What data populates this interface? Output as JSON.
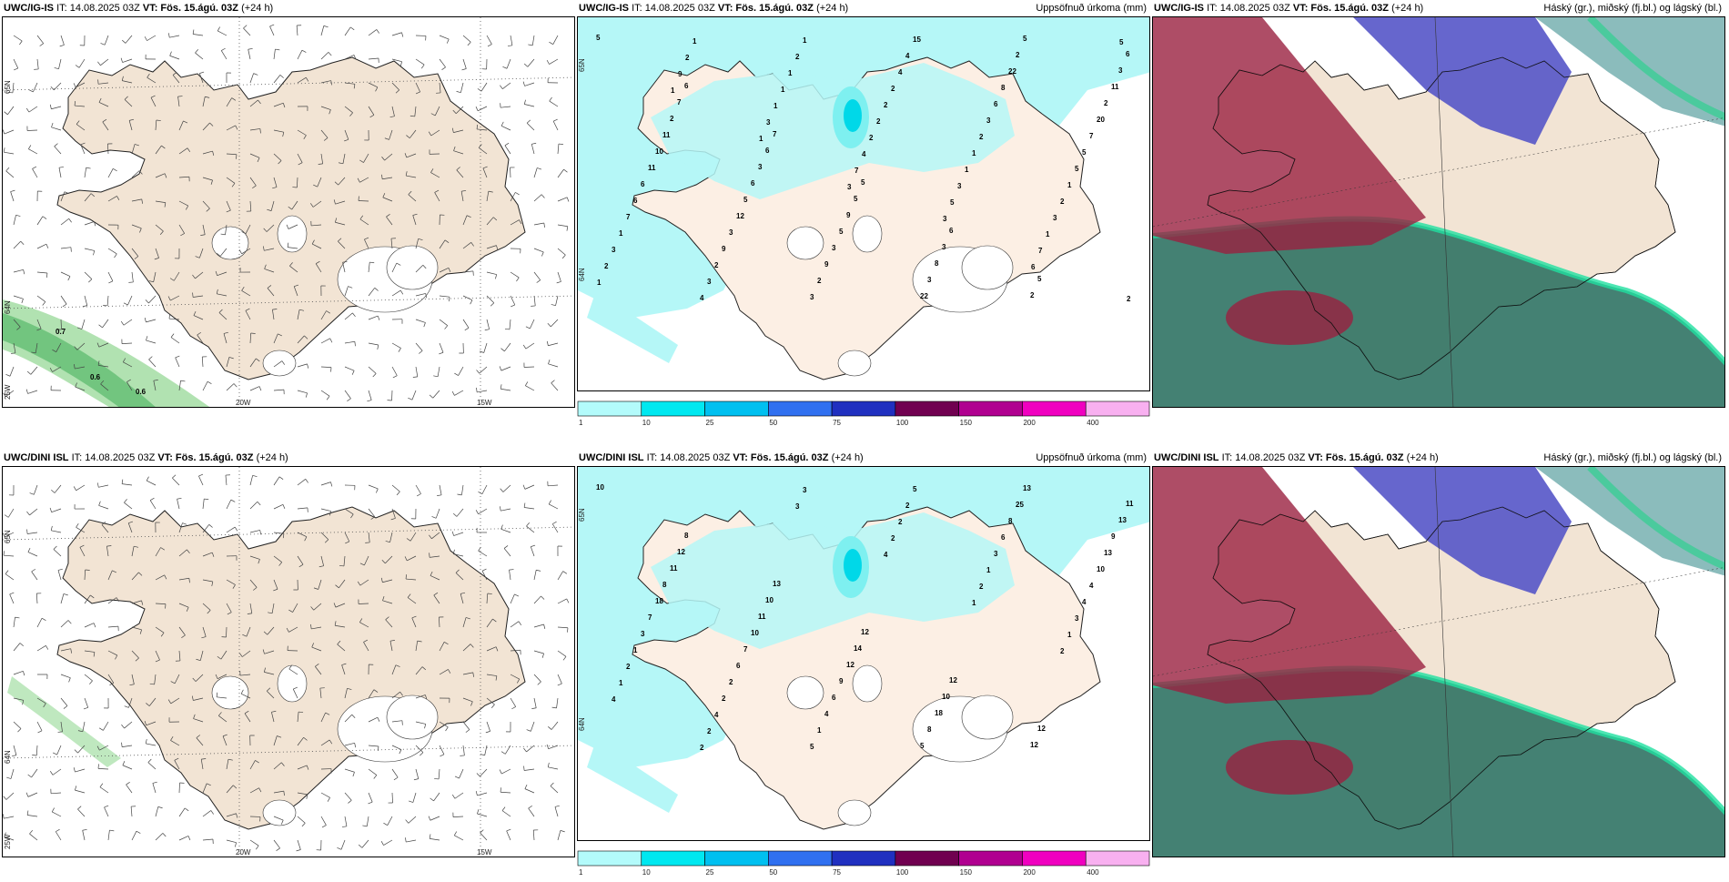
{
  "rows": [
    {
      "wind": {
        "model": "UWC/IG-IS",
        "it": "IT: 14.08.2025 03Z",
        "vt": "VT: Fös. 15.ágú. 03Z",
        "lead": "(+24 h)",
        "labels": [
          "0.7",
          "0.6",
          "0.6"
        ],
        "lon_ticks": [
          "20W",
          "15W"
        ],
        "lat_ticks": [
          "65N",
          "64N",
          "25W"
        ]
      },
      "precip": {
        "model": "UWC/IG-IS",
        "it": "IT: 14.08.2025 03Z",
        "vt": "VT: Fös. 15.ágú. 03Z",
        "lead": "(+24 h)",
        "title": "Uppsöfnuð úrkoma (mm)",
        "lat_ticks": [
          "65N",
          "64N"
        ],
        "values": [
          "5",
          "6",
          "7",
          "5",
          "6",
          "5",
          "6",
          "7",
          "6",
          "5",
          "3",
          "2",
          "3",
          "2",
          "3",
          "9",
          "8",
          "5",
          "11",
          "11",
          "6",
          "5",
          "3",
          "2",
          "2",
          "10",
          "5",
          "3",
          "22",
          "22",
          "20",
          "11",
          "12",
          "9",
          "15",
          "8",
          "7",
          "6",
          "3",
          "2",
          "4",
          "6",
          "5",
          "6",
          "9",
          "3",
          "4",
          "3",
          "5",
          "7",
          "2",
          "1",
          "2",
          "2",
          "1",
          "1",
          "3",
          "2",
          "2",
          "1",
          "2",
          "3",
          "4",
          "1",
          "2",
          "1",
          "3",
          "2",
          "1",
          "1",
          "2",
          "3",
          "1",
          "1",
          "2",
          "1",
          "4",
          "5",
          "7",
          "2",
          "9",
          "3",
          "7",
          "3",
          "6",
          "5",
          "1",
          "1",
          "3"
        ]
      },
      "cloud": {
        "model": "UWC/IG-IS",
        "it": "IT: 14.08.2025 03Z",
        "vt": "VT: Fös. 15.ágú. 03Z",
        "lead": "(+24 h)",
        "title": "Háský (gr.), miðský (fj.bl.) og lágský (bl.)"
      }
    },
    {
      "wind": {
        "model": "UWC/DINI ISL",
        "it": "IT: 14.08.2025 03Z",
        "vt": "VT: Fös. 15.ágú. 03Z",
        "lead": "(+24 h)",
        "labels": [],
        "lon_ticks": [
          "20W",
          "15W"
        ],
        "lat_ticks": [
          "65N",
          "64N",
          "25W"
        ]
      },
      "precip": {
        "model": "UWC/DINI ISL",
        "it": "IT: 14.08.2025 03Z",
        "vt": "VT: Fös. 15.ágú. 03Z",
        "lead": "(+24 h)",
        "title": "Uppsöfnuð úrkoma (mm)",
        "lat_ticks": [
          "65N",
          "64N"
        ],
        "values": [
          "10",
          "8",
          "13",
          "12",
          "12",
          "12",
          "11",
          "12",
          "10",
          "14",
          "10",
          "12",
          "13",
          "11",
          "11",
          "12",
          "18",
          "13",
          "9",
          "8",
          "10",
          "9",
          "8",
          "25",
          "13",
          "18",
          "7",
          "6",
          "5",
          "8",
          "10",
          "7",
          "6",
          "4",
          "5",
          "6",
          "4",
          "3",
          "2",
          "1",
          "2",
          "3",
          "4",
          "1",
          "2",
          "5",
          "2",
          "1",
          "3",
          "2",
          "4",
          "3",
          "2",
          "2",
          "1",
          "1",
          "2",
          "3",
          "4",
          "1",
          "2",
          "4",
          "2"
        ]
      },
      "cloud": {
        "model": "UWC/DINI ISL",
        "it": "IT: 14.08.2025 03Z",
        "vt": "VT: Fös. 15.ágú. 03Z",
        "lead": "(+24 h)",
        "title": "Háský (gr.), miðský (fj.bl.) og lágský (bl.)"
      }
    }
  ],
  "precip_scale": {
    "labels": [
      "1",
      "10",
      "25",
      "50",
      "75",
      "100",
      "150",
      "200",
      "400"
    ],
    "colors": [
      "#b3fbfb",
      "#00e8f0",
      "#00c0f0",
      "#3070f0",
      "#2030c0",
      "#700050",
      "#b00090",
      "#f000c0",
      "#f8b0f0"
    ]
  },
  "colors": {
    "land": "#f2e4d4",
    "precip_land": "#fcefe4",
    "light_precip": "#b5f7f7",
    "mid_precip": "#7ef0f0",
    "strong_precip": "#00d8e8",
    "green_band": "#8ad690",
    "high_cloud_green": "#2a7060",
    "mid_cloud_blue": "#5555c8",
    "low_cloud_red": "#9a2040"
  }
}
